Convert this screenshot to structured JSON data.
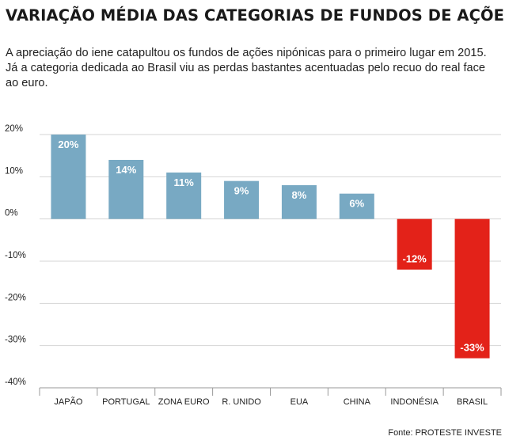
{
  "header": {
    "title": "VARIAÇÃO MÉDIA DAS CATEGORIAS DE FUNDOS DE AÇÕES",
    "subtitle": "A apreciação do iene catapultou os fundos de ações nipónicas para o primeiro lugar em 2015. Já a categoria dedicada ao Brasil viu as perdas bastantes acentuadas pelo recuo do real face ao euro."
  },
  "footer": {
    "source": "Fonte: PROTESTE INVESTE"
  },
  "colors": {
    "positive": "#78a9c3",
    "negative": "#e32219",
    "grid": "#d4d4d4",
    "axis": "#9a9a9a"
  },
  "chart_data": {
    "type": "bar",
    "categories": [
      "JAPÃO",
      "PORTUGAL",
      "ZONA EURO",
      "R. UNIDO",
      "EUA",
      "CHINA",
      "INDONÉSIA",
      "BRASIL"
    ],
    "values": [
      20,
      14,
      11,
      9,
      8,
      6,
      -12,
      -33
    ],
    "value_labels": [
      "20%",
      "14%",
      "11%",
      "9%",
      "8%",
      "6%",
      "-12%",
      "-33%"
    ],
    "y_ticks": [
      20,
      10,
      0,
      -10,
      -20,
      -30,
      -40
    ],
    "y_tick_labels": [
      "20%",
      "10%",
      "0%",
      "-10%",
      "-20%",
      "-30%",
      "-40%"
    ],
    "ylim": [
      -40,
      20
    ],
    "grid": true,
    "title": "",
    "xlabel": "",
    "ylabel": ""
  }
}
